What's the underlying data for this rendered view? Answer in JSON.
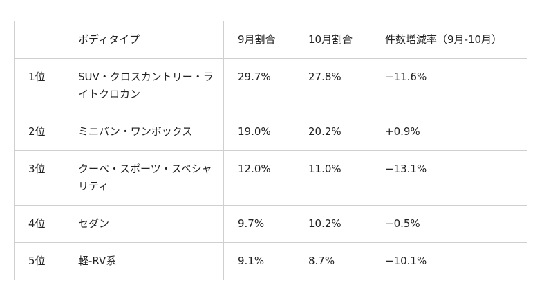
{
  "table": {
    "headers": [
      "",
      "ボディタイプ",
      "9月割合",
      "10月割合",
      "件数増減率（9月-10月）"
    ],
    "rows": [
      {
        "rank": "1位",
        "type": "SUV・クロスカントリー・ライトクロカン",
        "sep": "29.7%",
        "oct": "27.8%",
        "change": "−11.6%"
      },
      {
        "rank": "2位",
        "type": "ミニバン・ワンボックス",
        "sep": "19.0%",
        "oct": "20.2%",
        "change": "+0.9%"
      },
      {
        "rank": "3位",
        "type": "クーペ・スポーツ・スペシャリティ",
        "sep": "12.0%",
        "oct": "11.0%",
        "change": "−13.1%"
      },
      {
        "rank": "4位",
        "type": "セダン",
        "sep": "9.7%",
        "oct": "10.2%",
        "change": "−0.5%"
      },
      {
        "rank": "5位",
        "type": "軽-RV系",
        "sep": "9.1%",
        "oct": "8.7%",
        "change": "−10.1%"
      }
    ]
  }
}
